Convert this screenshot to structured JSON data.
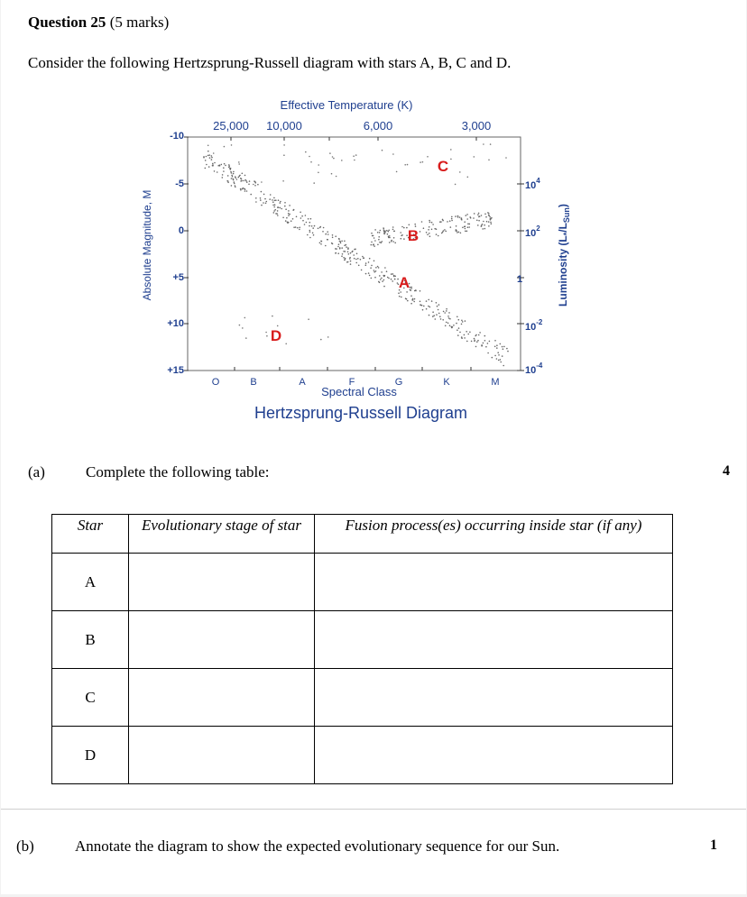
{
  "question": {
    "number": "Question 25",
    "marks": "(5 marks)",
    "intro": "Consider the following Hertzsprung-Russell diagram with stars A, B, C and D."
  },
  "diagram": {
    "caption": "Hertzsprung-Russell Diagram",
    "top_axis_title": "Effective Temperature (K)",
    "top_ticks": [
      "25,000",
      "10,000",
      "6,000",
      "3,000"
    ],
    "left_axis_title": "Absolute Magnitude, M",
    "left_ticks": [
      "-10",
      "-5",
      "0",
      "+5",
      "+10",
      "+15"
    ],
    "bottom_axis_title": "Spectral Class",
    "bottom_ticks": [
      "O",
      "B",
      "A",
      "F",
      "G",
      "K",
      "M"
    ],
    "right_axis_title": "Luminosity (L",
    "right_axis_title_sub": "*",
    "right_axis_title_mid": "/L",
    "right_axis_title_sub2": "Sun",
    "right_axis_title_end": ")",
    "right_ticks": [
      {
        "base": "10",
        "exp": "4"
      },
      {
        "base": "10",
        "exp": "2"
      },
      {
        "base": "1",
        "exp": ""
      },
      {
        "base": "10",
        "exp": "-2"
      },
      {
        "base": "10",
        "exp": "-4"
      }
    ],
    "star_labels": [
      "A",
      "B",
      "C",
      "D"
    ],
    "colors": {
      "axis_text": "#1f3f8f",
      "star_label": "#d81c1c",
      "points": "#555555"
    }
  },
  "part_a": {
    "label": "(a)",
    "text": "Complete the following table:",
    "marks": "4",
    "table": {
      "headers": [
        "Star",
        "Evolutionary stage of star",
        "Fusion process(es) occurring inside star (if any)"
      ],
      "rows": [
        "A",
        "B",
        "C",
        "D"
      ]
    }
  },
  "part_b": {
    "label": "(b)",
    "text": "Annotate the diagram to show the expected evolutionary sequence for our Sun.",
    "marks": "1"
  }
}
